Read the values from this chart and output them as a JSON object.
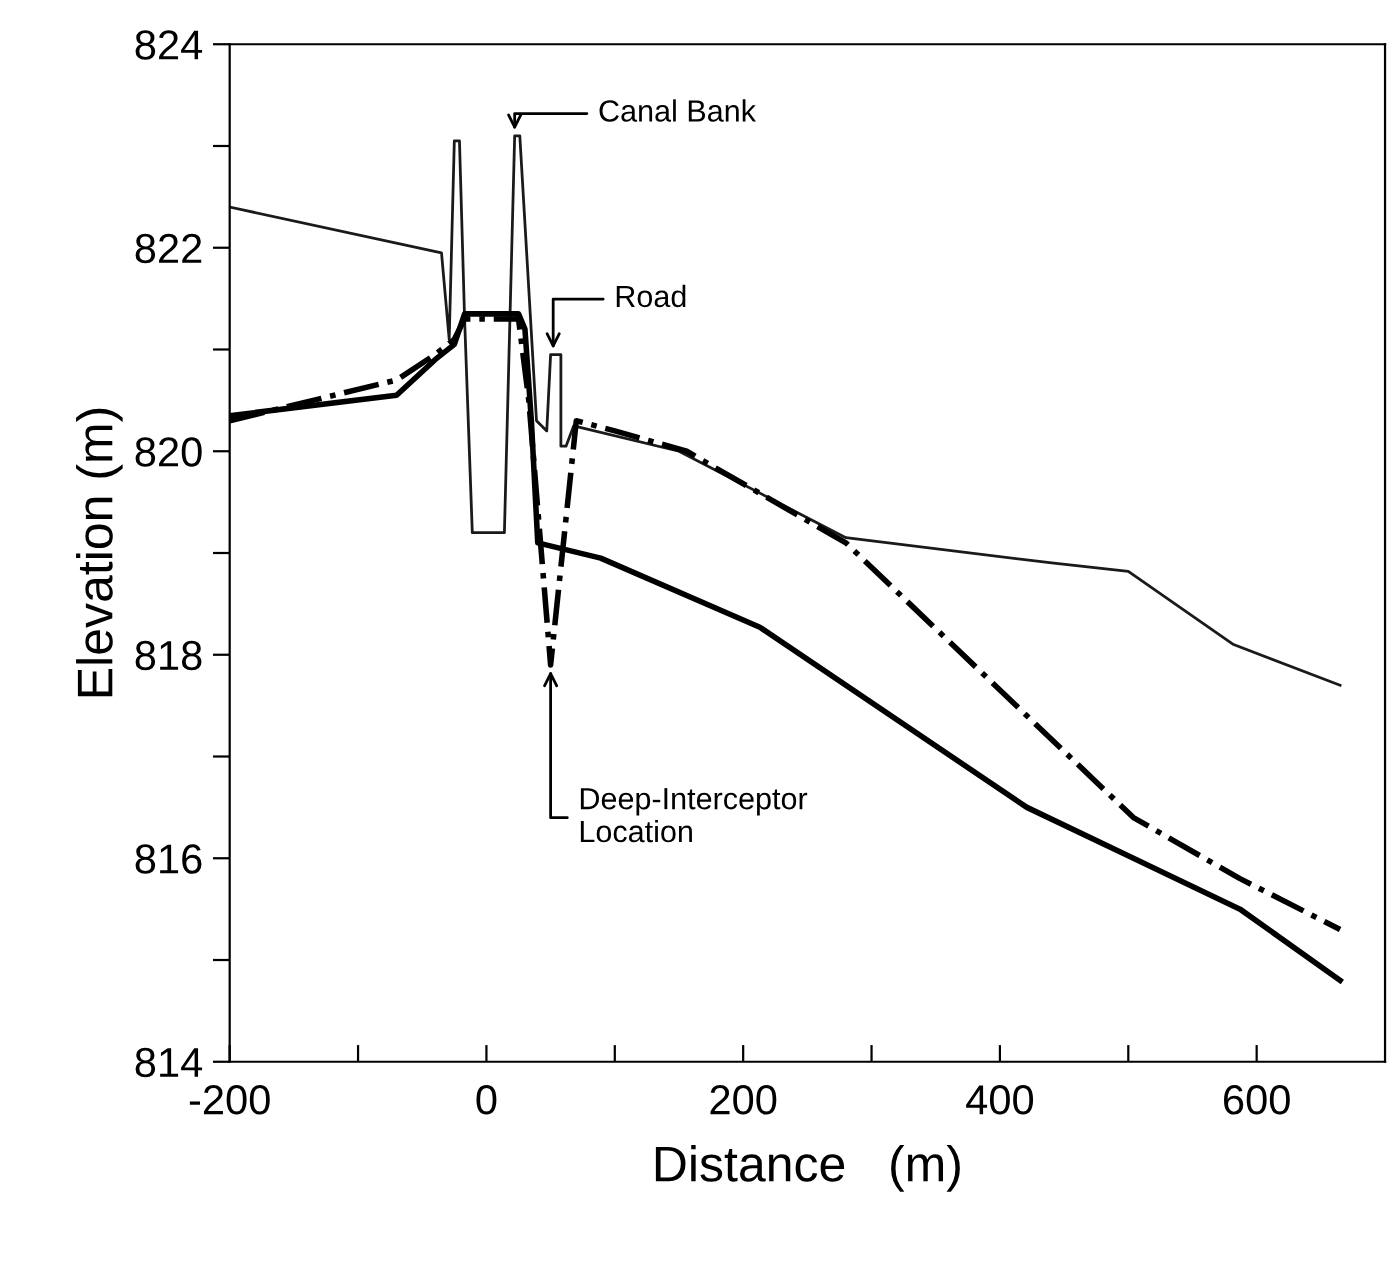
{
  "chart_data": {
    "type": "line",
    "xlabel": "Distance   (m)",
    "ylabel": "Elevation (m)",
    "xlim": [
      -200,
      700
    ],
    "ylim": [
      814,
      824
    ],
    "xticks": [
      -200,
      {
        "value": -100,
        "label": null
      },
      0,
      {
        "value": 100,
        "label": null
      },
      200,
      {
        "value": 300,
        "label": null
      },
      400,
      {
        "value": 500,
        "label": null
      },
      600
    ],
    "yticks": [
      814,
      {
        "value": 815,
        "label": null
      },
      816,
      {
        "value": 817,
        "label": null
      },
      818,
      {
        "value": 819,
        "label": null
      },
      820,
      {
        "value": 821,
        "label": null
      },
      822,
      {
        "value": 823,
        "label": null
      },
      824
    ],
    "grid": false,
    "marker": "none",
    "series": [
      {
        "color": "#1a1a1a",
        "line_style": "solid",
        "x": [
          -200,
          -35,
          -29,
          -25,
          -21,
          -17,
          -11,
          14,
          22,
          26,
          39,
          47,
          50,
          58,
          58,
          62,
          68,
          150,
          280,
          442,
          500,
          582,
          665
        ],
        "values": [
          822.4,
          821.95,
          821.1,
          823.05,
          823.05,
          821.3,
          819.2,
          819.2,
          823.1,
          823.1,
          820.3,
          820.2,
          820.95,
          820.95,
          820.05,
          820.05,
          820.25,
          820.0,
          819.15,
          818.9,
          818.82,
          818.1,
          817.7
        ]
      },
      {
        "color": "#000000",
        "line_style": "solid",
        "x": [
          -200,
          -70,
          -40,
          -25,
          -17,
          25,
          30,
          35,
          40,
          89,
          213,
          421,
          504,
          587,
          665
        ],
        "values": [
          820.35,
          820.55,
          820.9,
          821.05,
          821.35,
          821.35,
          821.2,
          820.3,
          819.1,
          818.95,
          818.27,
          816.5,
          816.0,
          815.5,
          814.8
        ]
      },
      {
        "color": "#000000",
        "line_style": "dashdot",
        "x": [
          -200,
          -70,
          -40,
          -25,
          -17,
          25,
          33,
          50,
          70,
          100,
          156,
          280,
          421,
          504,
          587,
          665
        ],
        "values": [
          820.3,
          820.7,
          820.95,
          821.1,
          821.3,
          821.3,
          820.5,
          817.9,
          820.3,
          820.2,
          820.0,
          819.1,
          817.4,
          816.4,
          815.8,
          815.3
        ]
      }
    ],
    "annotations": [
      {
        "text": "Canal Bank",
        "x": 22,
        "y": 823.1
      },
      {
        "text": "Road",
        "x": 52,
        "y": 820.95
      },
      {
        "text": "Deep-Interceptor\nLocation",
        "x": 50,
        "y": 817.9
      }
    ]
  }
}
